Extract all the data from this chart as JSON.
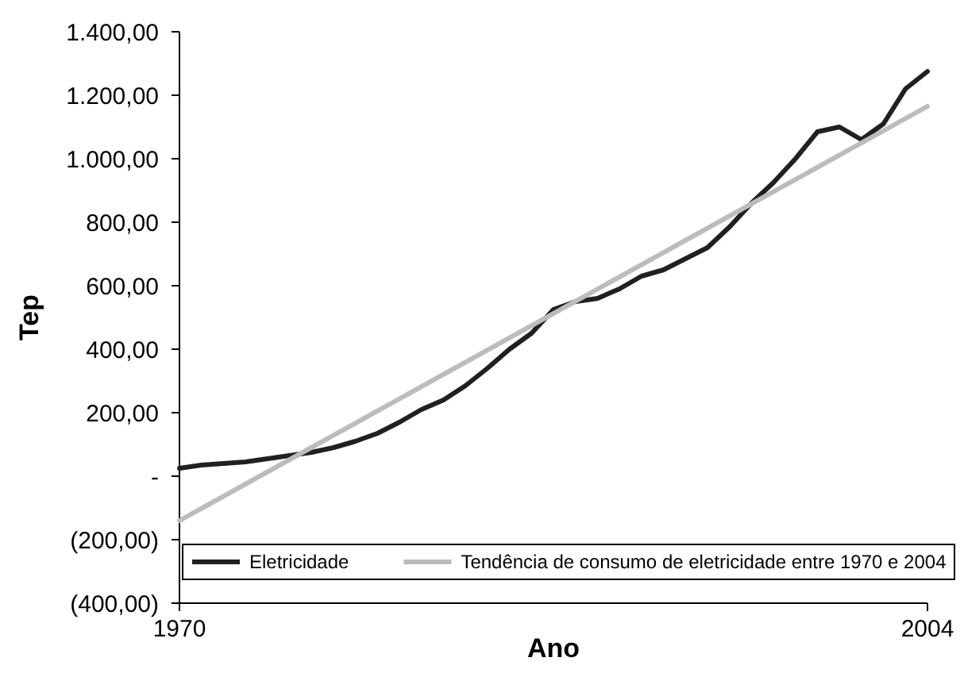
{
  "chart_data": {
    "type": "line",
    "xlabel": "Ano",
    "ylabel": "Tep",
    "xlim": [
      1970,
      2004
    ],
    "xticks": [
      1970,
      2004
    ],
    "ylim": [
      -400,
      1400
    ],
    "yticks": [
      {
        "value": -400,
        "label": "(400,00)"
      },
      {
        "value": -200,
        "label": "(200,00)"
      },
      {
        "value": 0,
        "label": "-"
      },
      {
        "value": 200,
        "label": "200,00"
      },
      {
        "value": 400,
        "label": "400,00"
      },
      {
        "value": 600,
        "label": "600,00"
      },
      {
        "value": 800,
        "label": "800,00"
      },
      {
        "value": 1000,
        "label": "1.000,00"
      },
      {
        "value": 1200,
        "label": "1.200,00"
      },
      {
        "value": 1400,
        "label": "1.400,00"
      }
    ],
    "grid": false,
    "legend": "bottom",
    "marker": "none",
    "line_style": "solid",
    "series": [
      {
        "name": "Eletricidade",
        "color": "#231f20",
        "x": [
          1970,
          1971,
          1972,
          1973,
          1974,
          1975,
          1976,
          1977,
          1978,
          1979,
          1980,
          1981,
          1982,
          1983,
          1984,
          1985,
          1986,
          1987,
          1988,
          1989,
          1990,
          1991,
          1992,
          1993,
          1994,
          1995,
          1996,
          1997,
          1998,
          1999,
          2000,
          2001,
          2002,
          2003,
          2004
        ],
        "values": [
          25,
          35,
          40,
          45,
          55,
          65,
          75,
          90,
          110,
          135,
          170,
          210,
          240,
          285,
          340,
          400,
          450,
          525,
          550,
          560,
          590,
          630,
          650,
          685,
          720,
          785,
          860,
          925,
          1000,
          1085,
          1100,
          1060,
          1110,
          1220,
          1275
        ]
      },
      {
        "name": "Tendência de consumo de eletricidade entre 1970 e 2004",
        "color": "#bcbcbc",
        "x": [
          1970,
          2004
        ],
        "values": [
          -140,
          1165
        ]
      }
    ]
  }
}
